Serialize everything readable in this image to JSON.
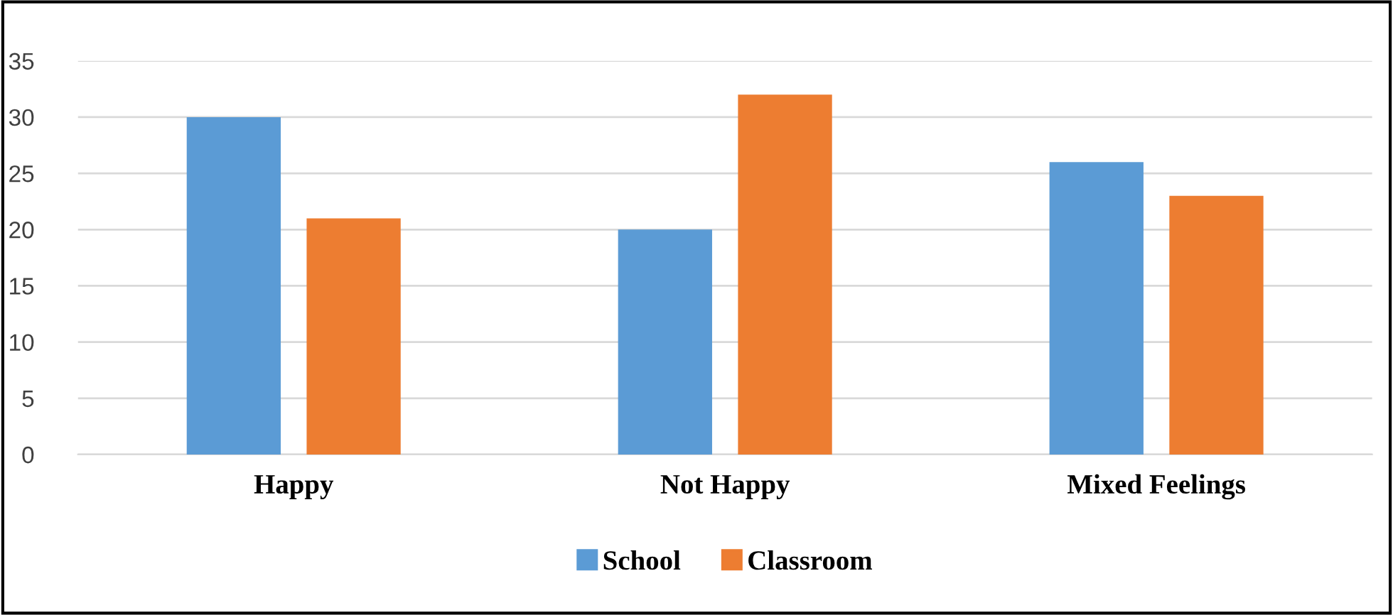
{
  "chart_data": {
    "type": "bar",
    "categories": [
      "Happy",
      "Not Happy",
      "Mixed Feelings"
    ],
    "series": [
      {
        "name": "School",
        "color": "#5b9bd5",
        "values": [
          30,
          20,
          26
        ]
      },
      {
        "name": "Classroom",
        "color": "#ed7d31",
        "values": [
          21,
          32,
          23
        ]
      }
    ],
    "ylim": [
      0,
      35
    ],
    "yticks": [
      0,
      5,
      10,
      15,
      20,
      25,
      30,
      35
    ],
    "grid": "y",
    "legend": "bottom"
  }
}
